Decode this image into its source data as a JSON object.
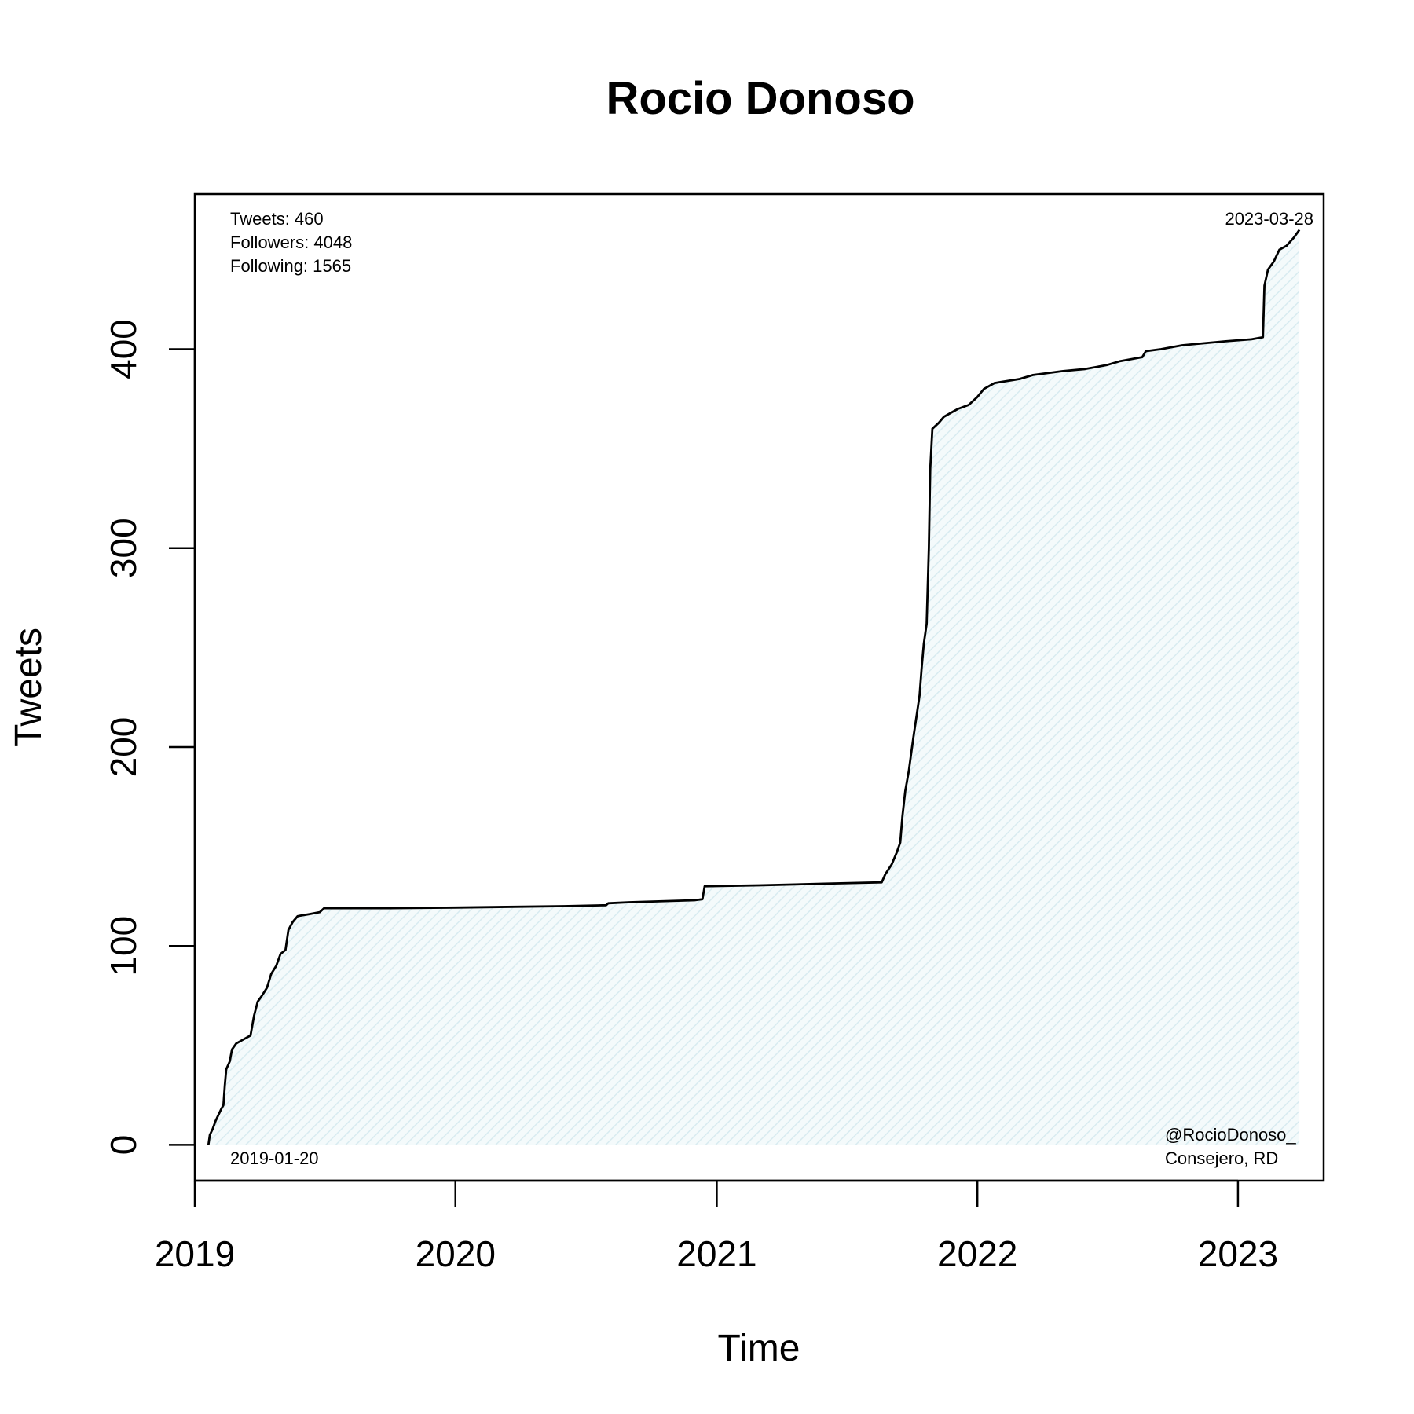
{
  "chart_data": {
    "type": "area",
    "title": "Rocio Donoso",
    "xlabel": "Time",
    "ylabel": "Tweets",
    "xlim": [
      "2019-01-01",
      "2023-05-01"
    ],
    "ylim": [
      -18,
      478
    ],
    "x_ticks": [
      {
        "date": "2019-01-01",
        "label": "2019"
      },
      {
        "date": "2020-01-01",
        "label": "2020"
      },
      {
        "date": "2021-01-01",
        "label": "2021"
      },
      {
        "date": "2022-01-01",
        "label": "2022"
      },
      {
        "date": "2023-01-01",
        "label": "2023"
      }
    ],
    "y_ticks": [
      0,
      100,
      200,
      300,
      400
    ],
    "grid": false,
    "fill_color": "#e4f1f5",
    "line_color": "#000000",
    "stats": {
      "tweets": "Tweets: 460",
      "followers": "Followers: 4048",
      "following": "Following: 1565"
    },
    "start_label": "2019-01-20",
    "end_label": "2023-03-28",
    "handle": "@RocioDonoso_",
    "bio": "Consejero, RD",
    "series": [
      {
        "points": [
          [
            "2019-01-20",
            0
          ],
          [
            "2019-01-22",
            5
          ],
          [
            "2019-01-26",
            8
          ],
          [
            "2019-01-30",
            12
          ],
          [
            "2019-02-03",
            15
          ],
          [
            "2019-02-07",
            18
          ],
          [
            "2019-02-10",
            20
          ],
          [
            "2019-02-12",
            30
          ],
          [
            "2019-02-14",
            38
          ],
          [
            "2019-02-19",
            42
          ],
          [
            "2019-02-22",
            48
          ],
          [
            "2019-02-28",
            51
          ],
          [
            "2019-03-10",
            53
          ],
          [
            "2019-03-20",
            55
          ],
          [
            "2019-03-25",
            65
          ],
          [
            "2019-03-30",
            72
          ],
          [
            "2019-04-05",
            75
          ],
          [
            "2019-04-12",
            79
          ],
          [
            "2019-04-18",
            86
          ],
          [
            "2019-04-25",
            90
          ],
          [
            "2019-05-01",
            96
          ],
          [
            "2019-05-08",
            98
          ],
          [
            "2019-05-12",
            108
          ],
          [
            "2019-05-18",
            112
          ],
          [
            "2019-05-25",
            115
          ],
          [
            "2019-06-10",
            116
          ],
          [
            "2019-06-25",
            117
          ],
          [
            "2019-07-01",
            119
          ],
          [
            "2019-10-01",
            119
          ],
          [
            "2020-01-01",
            119.3
          ],
          [
            "2020-06-01",
            120
          ],
          [
            "2020-07-30",
            120.5
          ],
          [
            "2020-08-02",
            121.5
          ],
          [
            "2020-09-01",
            122
          ],
          [
            "2020-12-01",
            123
          ],
          [
            "2020-12-12",
            123.5
          ],
          [
            "2020-12-15",
            130
          ],
          [
            "2021-03-01",
            130.5
          ],
          [
            "2021-06-01",
            131.3
          ],
          [
            "2021-08-20",
            132
          ],
          [
            "2021-08-25",
            136
          ],
          [
            "2021-09-03",
            141
          ],
          [
            "2021-09-10",
            147
          ],
          [
            "2021-09-15",
            152
          ],
          [
            "2021-09-18",
            165
          ],
          [
            "2021-09-22",
            178
          ],
          [
            "2021-09-27",
            188
          ],
          [
            "2021-10-03",
            204
          ],
          [
            "2021-10-08",
            216
          ],
          [
            "2021-10-12",
            226
          ],
          [
            "2021-10-15",
            240
          ],
          [
            "2021-10-18",
            252
          ],
          [
            "2021-10-22",
            262
          ],
          [
            "2021-10-25",
            300
          ],
          [
            "2021-10-27",
            340
          ],
          [
            "2021-10-30",
            360
          ],
          [
            "2021-11-08",
            363
          ],
          [
            "2021-11-15",
            366
          ],
          [
            "2021-11-25",
            368
          ],
          [
            "2021-12-05",
            370
          ],
          [
            "2021-12-20",
            372
          ],
          [
            "2022-01-01",
            376
          ],
          [
            "2022-01-10",
            380
          ],
          [
            "2022-01-25",
            383
          ],
          [
            "2022-03-01",
            385
          ],
          [
            "2022-03-20",
            387
          ],
          [
            "2022-05-01",
            389
          ],
          [
            "2022-06-01",
            390
          ],
          [
            "2022-07-01",
            392
          ],
          [
            "2022-07-20",
            394
          ],
          [
            "2022-08-20",
            396
          ],
          [
            "2022-08-25",
            399
          ],
          [
            "2022-09-15",
            400
          ],
          [
            "2022-10-15",
            402
          ],
          [
            "2022-11-15",
            403
          ],
          [
            "2022-12-15",
            404
          ],
          [
            "2023-01-20",
            405
          ],
          [
            "2023-02-05",
            406
          ],
          [
            "2023-02-07",
            432
          ],
          [
            "2023-02-12",
            440
          ],
          [
            "2023-02-20",
            444
          ],
          [
            "2023-02-28",
            450
          ],
          [
            "2023-03-10",
            452
          ],
          [
            "2023-03-20",
            456
          ],
          [
            "2023-03-28",
            460
          ]
        ]
      }
    ]
  }
}
